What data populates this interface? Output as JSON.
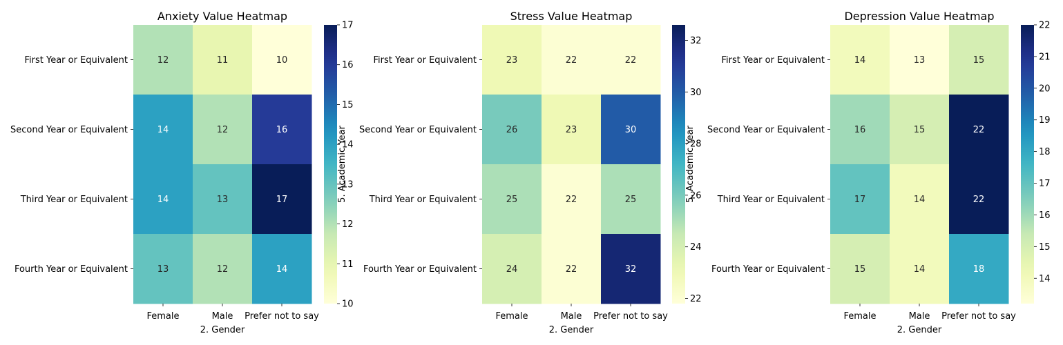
{
  "chart_data": [
    {
      "type": "heatmap",
      "title": "Anxiety Value Heatmap",
      "xlabel": "2. Gender",
      "ylabel": "5. Academic Year",
      "x": [
        "Female",
        "Male",
        "Prefer not to say"
      ],
      "y": [
        "First Year or Equivalent",
        "Second Year or Equivalent",
        "Third Year or Equivalent",
        "Fourth Year or Equivalent"
      ],
      "values": [
        [
          12,
          11,
          10
        ],
        [
          14,
          12,
          16
        ],
        [
          14,
          13,
          17
        ],
        [
          13,
          12,
          14
        ]
      ],
      "vmin": 10,
      "vmax": 17,
      "colorbar_ticks": [
        10,
        11,
        12,
        13,
        14,
        15,
        16,
        17
      ],
      "colormap": "YlGnBu"
    },
    {
      "type": "heatmap",
      "title": "Stress Value Heatmap",
      "xlabel": "2. Gender",
      "ylabel": "5. Academic Year",
      "x": [
        "Female",
        "Male",
        "Prefer not to say"
      ],
      "y": [
        "First Year or Equivalent",
        "Second Year or Equivalent",
        "Third Year or Equivalent",
        "Fourth Year or Equivalent"
      ],
      "values": [
        [
          23,
          22,
          22
        ],
        [
          26,
          23,
          30
        ],
        [
          25,
          22,
          25
        ],
        [
          24,
          22,
          32
        ]
      ],
      "vmin": 21.8,
      "vmax": 32.6,
      "colorbar_ticks": [
        22,
        24,
        26,
        28,
        30,
        32
      ],
      "colormap": "YlGnBu"
    },
    {
      "type": "heatmap",
      "title": "Depression Value Heatmap",
      "xlabel": "2. Gender",
      "ylabel": "",
      "x": [
        "Female",
        "Male",
        "Prefer not to say"
      ],
      "y": [
        "First Year or Equivalent",
        "Second Year or Equivalent",
        "Third Year or Equivalent",
        "Fourth Year or Equivalent"
      ],
      "values": [
        [
          14,
          13,
          15
        ],
        [
          16,
          15,
          22
        ],
        [
          17,
          14,
          22
        ],
        [
          15,
          14,
          18
        ]
      ],
      "vmin": 13.2,
      "vmax": 22,
      "colorbar_ticks": [
        14,
        15,
        16,
        17,
        18,
        19,
        20,
        21,
        22
      ],
      "colormap": "YlGnBu"
    }
  ]
}
